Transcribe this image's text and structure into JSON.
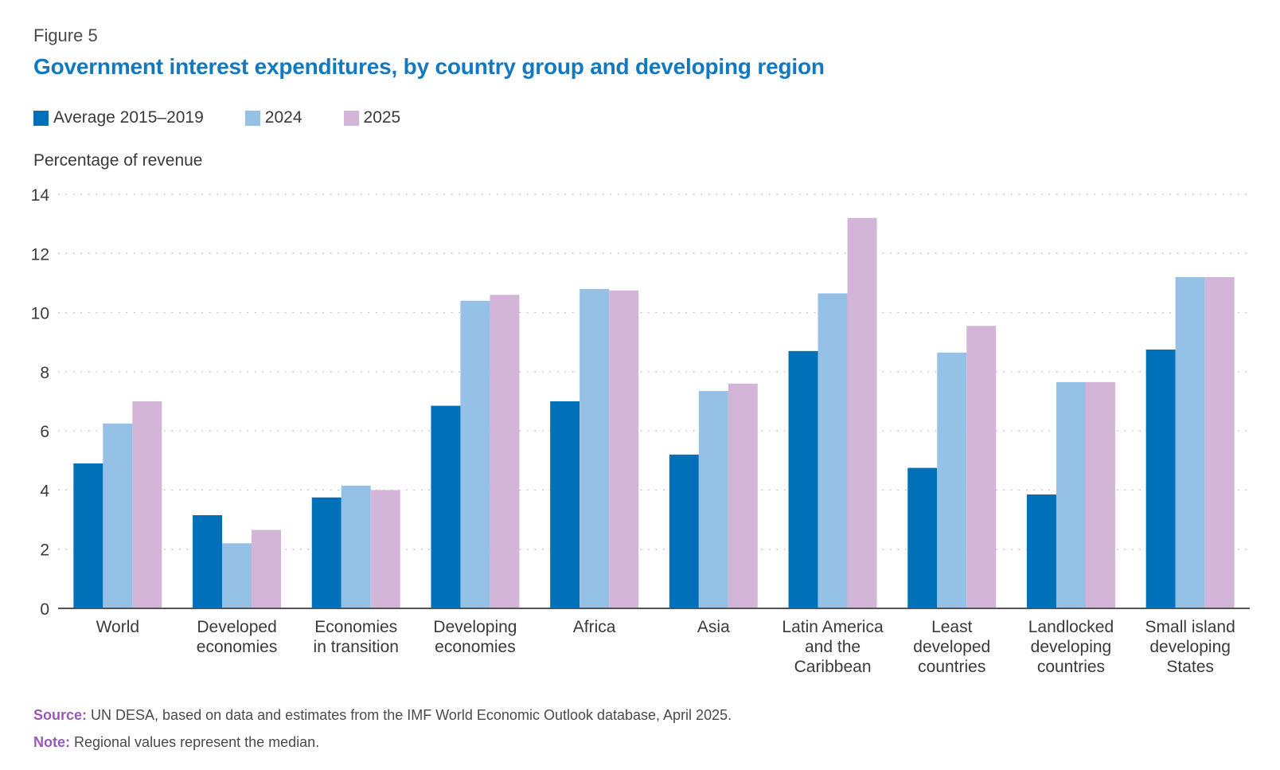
{
  "figure_label": "Figure 5",
  "title": "Government interest expenditures, by country group and developing region",
  "colors": {
    "title": "#1279c1",
    "series": [
      "#0070b8",
      "#95c1e6",
      "#d3b5d8"
    ],
    "footer_key": "#9b59b6"
  },
  "footer": {
    "source_key": "Source:",
    "source_text": " UN DESA, based on data and estimates from the IMF World Economic Outlook database, April 2025.",
    "note_key": "Note:",
    "note_text": " Regional values represent the median."
  },
  "chart_data": {
    "type": "bar",
    "ylabel": "Percentage of revenue",
    "ylim": [
      0,
      14
    ],
    "yticks": [
      0,
      2,
      4,
      6,
      8,
      10,
      12,
      14
    ],
    "grid": "horizontal dotted",
    "legend_position": "top-left",
    "categories": [
      [
        "World"
      ],
      [
        "Developed",
        "economies"
      ],
      [
        "Economies",
        "in transition"
      ],
      [
        "Developing",
        "economies"
      ],
      [
        "Africa"
      ],
      [
        "Asia"
      ],
      [
        "Latin America",
        "and the",
        "Caribbean"
      ],
      [
        "Least",
        "developed",
        "countries"
      ],
      [
        "Landlocked",
        "developing",
        "countries"
      ],
      [
        "Small island",
        "developing",
        "States"
      ]
    ],
    "series": [
      {
        "name": "Average 2015–2019",
        "values": [
          4.9,
          3.15,
          3.75,
          6.85,
          7.0,
          5.2,
          8.7,
          4.75,
          3.85,
          8.75
        ]
      },
      {
        "name": "2024",
        "values": [
          6.25,
          2.2,
          4.15,
          10.4,
          10.8,
          7.35,
          10.65,
          8.65,
          7.65,
          11.2
        ]
      },
      {
        "name": "2025",
        "values": [
          7.0,
          2.65,
          4.0,
          10.6,
          10.75,
          7.6,
          13.2,
          9.55,
          7.65,
          11.2
        ]
      }
    ]
  }
}
